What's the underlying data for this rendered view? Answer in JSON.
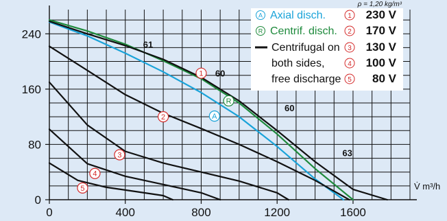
{
  "chart_data": {
    "type": "line",
    "density_note": "ρ = 1,20 kg/m³",
    "xlabel": "V̇ m³/h",
    "ylabel": "",
    "xlim": [
      0,
      1900
    ],
    "ylim": [
      0,
      275
    ],
    "x_ticks": [
      0,
      400,
      800,
      1200,
      1600
    ],
    "y_ticks": [
      0,
      80,
      160,
      240
    ],
    "legend": {
      "placement": "top-right",
      "entries": [
        {
          "symbol": "A",
          "label": "Axial disch.",
          "color": "#1aa3d9"
        },
        {
          "symbol": "R",
          "label": "Centrif. disch.",
          "color": "#1e8a3c"
        },
        {
          "symbol": "",
          "label": "Centrifugal on",
          "color": "#111111"
        },
        {
          "symbol": "",
          "label": "both sides,",
          "color": "#111111"
        },
        {
          "symbol": "",
          "label": "free discharge",
          "color": "#111111"
        }
      ],
      "voltages": [
        {
          "marker": "1",
          "label": "230 V"
        },
        {
          "marker": "2",
          "label": "170 V"
        },
        {
          "marker": "3",
          "label": "130 V"
        },
        {
          "marker": "4",
          "label": "100 V"
        },
        {
          "marker": "5",
          "label": "80 V"
        }
      ]
    },
    "series": [
      {
        "name": "Axial disch.",
        "color": "#1aa3d9",
        "points": [
          [
            0,
            257
          ],
          [
            200,
            237
          ],
          [
            400,
            212
          ],
          [
            600,
            185
          ],
          [
            800,
            155
          ],
          [
            1000,
            120
          ],
          [
            1200,
            77
          ],
          [
            1400,
            30
          ],
          [
            1550,
            0
          ]
        ]
      },
      {
        "name": "Centrif. disch.",
        "color": "#1e8a3c",
        "points": [
          [
            0,
            260
          ],
          [
            200,
            244
          ],
          [
            400,
            225
          ],
          [
            600,
            201
          ],
          [
            800,
            175
          ],
          [
            1000,
            140
          ],
          [
            1200,
            95
          ],
          [
            1400,
            45
          ],
          [
            1600,
            0
          ]
        ]
      },
      {
        "name": "230 V",
        "color": "#111111",
        "points": [
          [
            0,
            258
          ],
          [
            200,
            240
          ],
          [
            400,
            223
          ],
          [
            600,
            203
          ],
          [
            800,
            177
          ],
          [
            1000,
            143
          ],
          [
            1200,
            100
          ],
          [
            1400,
            55
          ],
          [
            1600,
            15
          ],
          [
            1780,
            0
          ]
        ]
      },
      {
        "name": "170 V",
        "color": "#111111",
        "points": [
          [
            0,
            222
          ],
          [
            200,
            187
          ],
          [
            400,
            152
          ],
          [
            600,
            125
          ],
          [
            800,
            103
          ],
          [
            1000,
            80
          ],
          [
            1200,
            55
          ],
          [
            1400,
            28
          ],
          [
            1580,
            0
          ]
        ]
      },
      {
        "name": "130 V",
        "color": "#111111",
        "points": [
          [
            0,
            170
          ],
          [
            200,
            108
          ],
          [
            400,
            70
          ],
          [
            600,
            53
          ],
          [
            800,
            40
          ],
          [
            1000,
            27
          ],
          [
            1200,
            10
          ],
          [
            1260,
            0
          ]
        ]
      },
      {
        "name": "100 V",
        "color": "#111111",
        "points": [
          [
            0,
            102
          ],
          [
            200,
            52
          ],
          [
            400,
            34
          ],
          [
            600,
            22
          ],
          [
            800,
            10
          ],
          [
            900,
            0
          ]
        ]
      },
      {
        "name": "80 V",
        "color": "#111111",
        "points": [
          [
            0,
            53
          ],
          [
            150,
            28
          ],
          [
            300,
            18
          ],
          [
            450,
            12
          ],
          [
            600,
            6
          ],
          [
            650,
            0
          ]
        ]
      }
    ],
    "annotations": [
      {
        "text": "61",
        "x": 520,
        "y": 220
      },
      {
        "text": "60",
        "x": 900,
        "y": 178
      },
      {
        "text": "60",
        "x": 1265,
        "y": 128
      },
      {
        "text": "63",
        "x": 1570,
        "y": 63
      }
    ],
    "curve_markers": [
      {
        "symbol": "A",
        "color": "#1aa3d9",
        "x": 870,
        "y": 121
      },
      {
        "symbol": "R",
        "color": "#1e8a3c",
        "x": 945,
        "y": 143
      },
      {
        "symbol": "1",
        "color": "#d42a2a",
        "x": 800,
        "y": 183
      },
      {
        "symbol": "2",
        "color": "#d42a2a",
        "x": 600,
        "y": 120
      },
      {
        "symbol": "3",
        "color": "#d42a2a",
        "x": 370,
        "y": 65
      },
      {
        "symbol": "4",
        "color": "#d42a2a",
        "x": 240,
        "y": 38
      },
      {
        "symbol": "5",
        "color": "#d42a2a",
        "x": 175,
        "y": 17
      }
    ]
  }
}
